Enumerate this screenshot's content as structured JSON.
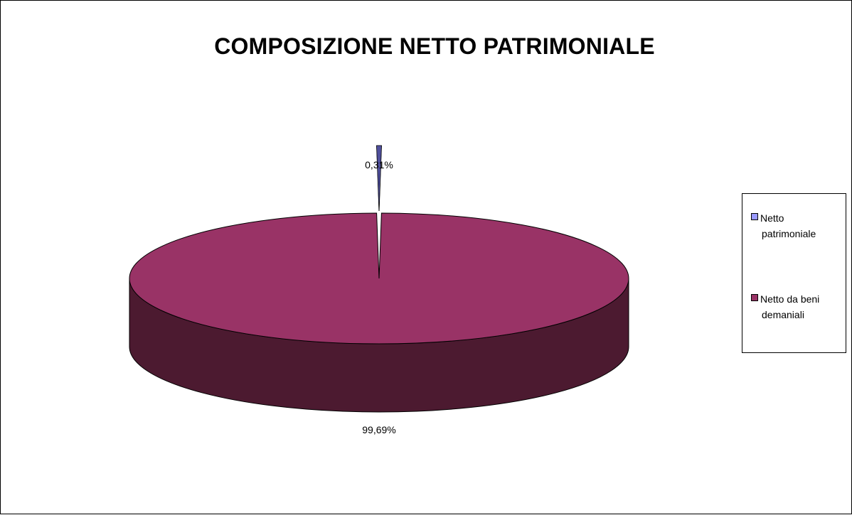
{
  "chart_data": {
    "type": "pie",
    "title": "COMPOSIZIONE NETTO PATRIMONIALE",
    "three_d": true,
    "legend_position": "right",
    "slices": [
      {
        "label_lines": [
          "Netto",
          "patrimoniale"
        ],
        "value": 0.31,
        "data_label": "0,31%",
        "color": "#9999ff",
        "side_color": "#4f4f9c",
        "exploded": true
      },
      {
        "label_lines": [
          "Netto da beni",
          "demaniali"
        ],
        "value": 99.69,
        "data_label": "99,69%",
        "color": "#993366",
        "side_color": "#4c1a30",
        "exploded": false
      }
    ]
  }
}
